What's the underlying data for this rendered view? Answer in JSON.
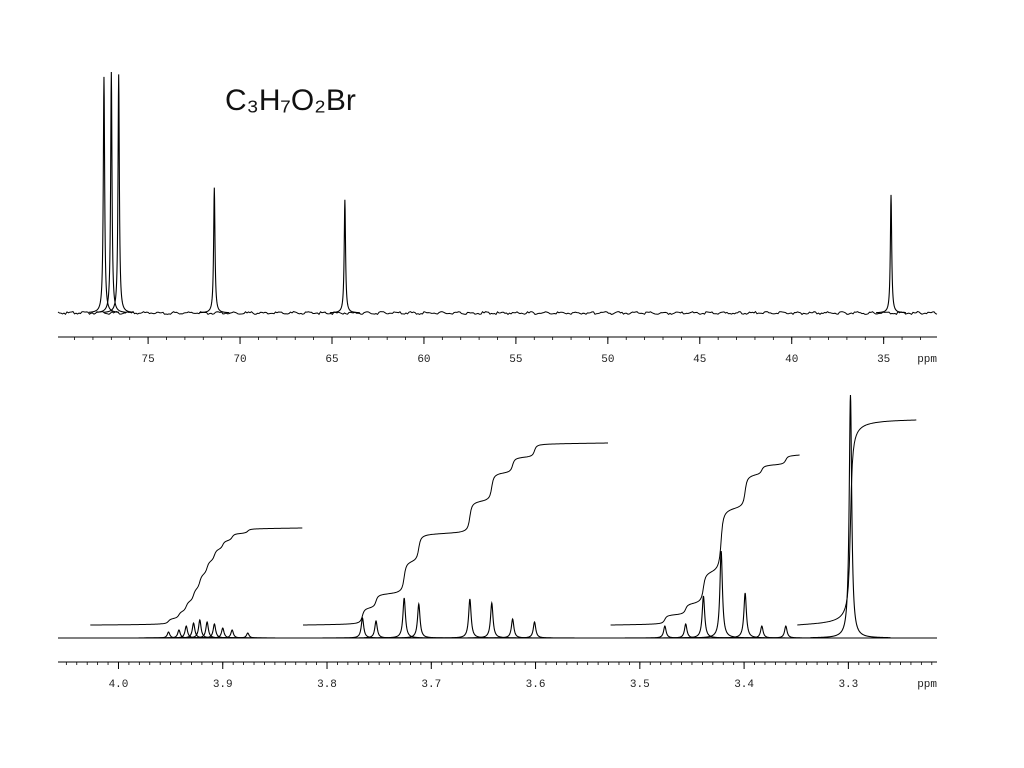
{
  "chart_data": [
    {
      "type": "spectrum",
      "title": "C₃H₇O₂Br",
      "x_label": "ppm",
      "xlim": [
        79.9,
        32.1
      ],
      "xticks": [
        75,
        70,
        65,
        60,
        55,
        50,
        45,
        40,
        35
      ],
      "xminor": 1,
      "ylim": [
        0,
        100
      ],
      "color": "#000000",
      "peaks": {
        "x": [
          77.4,
          77.0,
          76.6,
          71.4,
          64.3,
          34.6
        ],
        "values": [
          98,
          100,
          99,
          52,
          47,
          49
        ]
      }
    },
    {
      "type": "spectrum",
      "x_label": "ppm",
      "xlim": [
        4.058,
        3.215
      ],
      "xticks": [
        {
          "value": 4.0,
          "label": "4.0"
        },
        {
          "value": 3.9,
          "label": "3.9"
        },
        {
          "value": 3.8,
          "label": "3.8"
        },
        {
          "value": 3.7,
          "label": "3.7"
        },
        {
          "value": 3.6,
          "label": "3.6"
        },
        {
          "value": 3.5,
          "label": "3.5"
        },
        {
          "value": 3.4,
          "label": "3.4"
        },
        {
          "value": 3.3,
          "label": "3.3"
        }
      ],
      "xminor": 0.01,
      "ylim": [
        0,
        250
      ],
      "color": "#000000",
      "peaks": {
        "x": [
          3.952,
          3.942,
          3.935,
          3.928,
          3.922,
          3.915,
          3.908,
          3.9,
          3.891,
          3.876,
          3.766,
          3.753,
          3.726,
          3.712,
          3.663,
          3.642,
          3.622,
          3.601,
          3.476,
          3.456,
          3.439,
          3.422,
          3.399,
          3.383,
          3.36,
          3.298
        ],
        "values": [
          6,
          8,
          12,
          15,
          18,
          16,
          14,
          10,
          8,
          5,
          20,
          17,
          40,
          34,
          39,
          35,
          19,
          16,
          12,
          14,
          42,
          87,
          45,
          12,
          12,
          243
        ]
      },
      "integrals": [
        {
          "range": [
            4.027,
            3.823
          ],
          "value": 97
        },
        {
          "range": [
            3.823,
            3.53
          ],
          "value": 182
        },
        {
          "range": [
            3.528,
            3.346
          ],
          "value": 170
        },
        {
          "range": [
            3.349,
            3.234
          ],
          "value": 205
        }
      ]
    }
  ]
}
